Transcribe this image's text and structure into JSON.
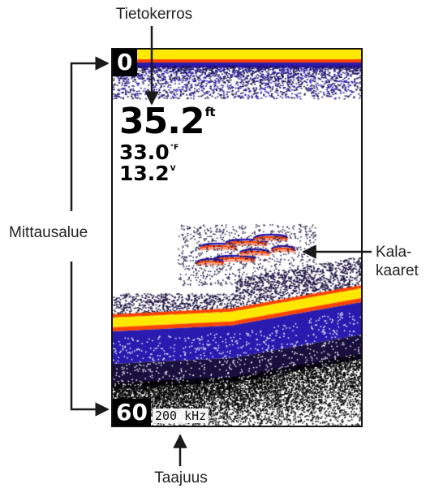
{
  "callouts": {
    "data_layer": "Tietokerros",
    "range": "Mittausalue",
    "fish_arches_line1": "Kala-",
    "fish_arches_line2": "kaaret",
    "frequency": "Taajuus"
  },
  "screen": {
    "range_top": "0",
    "range_bottom": "60",
    "frequency": "200 kHz",
    "depth_value": "35.2",
    "depth_unit": "ft",
    "temperature_value": "33.0",
    "temperature_unit": "°F",
    "voltage_value": "13.2",
    "voltage_unit": "V"
  },
  "colors": {
    "return_strong": "#ffe800",
    "return_medium": "#ff4400",
    "return_weak": "#2a1bb0",
    "return_faint": "#1a1040"
  }
}
